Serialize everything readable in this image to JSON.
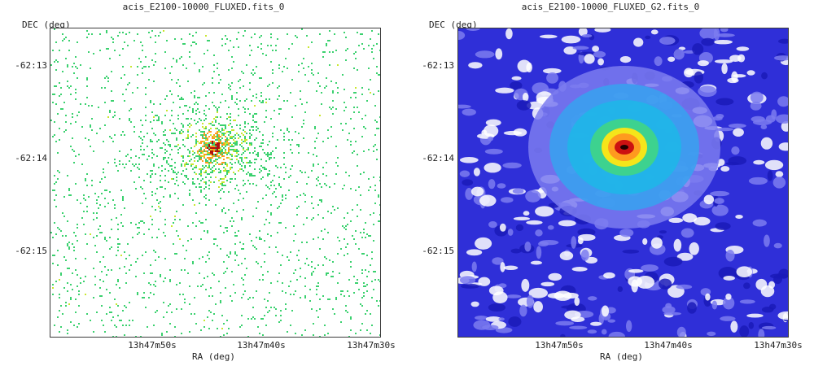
{
  "panels": [
    {
      "id": "left",
      "title": "acis_E2100-10000_FLUXED.fits_0",
      "image_kind": "sparse-counts",
      "colormap": "rainbow-sparse",
      "y_axis_label": "DEC  (deg)",
      "x_axis_label": "RA (deg)",
      "y_ticks": [
        "-62:13",
        "-62:14",
        "-62:15"
      ],
      "x_ticks": [
        "13h47m50s",
        "13h47m40s",
        "13h47m30s"
      ]
    },
    {
      "id": "right",
      "title": "acis_E2100-10000_FLUXED_G2.fits_0",
      "image_kind": "smoothed",
      "colormap": "rainbow-smooth",
      "y_axis_label": "DEC  (deg)",
      "x_axis_label": "RA (deg)",
      "y_ticks": [
        "-62:13",
        "-62:14",
        "-62:15"
      ],
      "x_ticks": [
        "13h47m50s",
        "13h47m40s",
        "13h47m30s"
      ]
    }
  ],
  "colors": {
    "frame": "#3a3a3a",
    "sparse_low": "#3bd16f",
    "sparse_mid": "#c9e72e",
    "sparse_high": "#ff9a1f",
    "sparse_peak": "#b01010",
    "smooth_background": "#2f2fd8",
    "smooth_low": "#7b7bf0",
    "smooth_mid": "#1fb6e8",
    "smooth_high": "#f5e51a",
    "smooth_peak": "#cc1111"
  }
}
